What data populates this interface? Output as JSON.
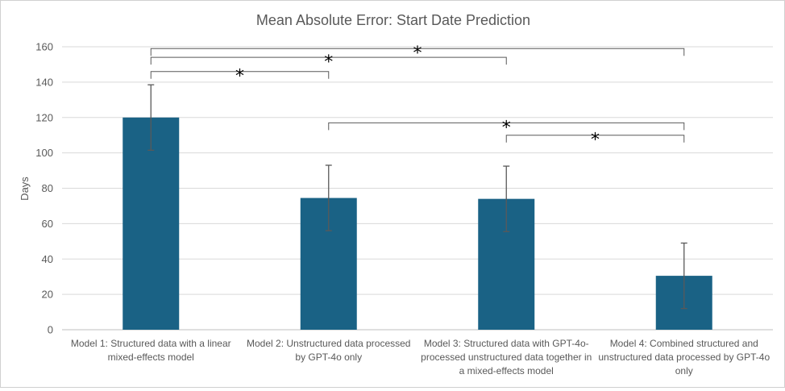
{
  "chart_data": {
    "type": "bar",
    "title": "Mean Absolute Error: Start Date Prediction",
    "xlabel": "",
    "ylabel": "Days",
    "ylim": [
      0,
      160
    ],
    "yticks": [
      0,
      20,
      40,
      60,
      80,
      100,
      120,
      140,
      160
    ],
    "grid": true,
    "bar_color": "#1a6285",
    "error_color": "#595959",
    "categories": [
      [
        "Model 1: Structured data with a linear",
        "mixed-effects model"
      ],
      [
        "Model 2: Unstructured data processed",
        "by GPT-4o only"
      ],
      [
        "Model 3: Structured data with GPT-4o-",
        "processed unstructured data together in",
        "a mixed-effects model"
      ],
      [
        "Model 4: Combined structured and",
        "unstructured data processed by GPT-4o",
        "only"
      ]
    ],
    "values": [
      120,
      74.5,
      74,
      30.5
    ],
    "error": [
      18.5,
      18.5,
      18.5,
      18.5
    ],
    "significance": [
      {
        "from": 0,
        "to": 3,
        "y": 159,
        "label": "*"
      },
      {
        "from": 0,
        "to": 2,
        "y": 154,
        "label": "*"
      },
      {
        "from": 0,
        "to": 1,
        "y": 146,
        "label": "*"
      },
      {
        "from": 1,
        "to": 3,
        "y": 117,
        "label": "*"
      },
      {
        "from": 2,
        "to": 3,
        "y": 110,
        "label": "*"
      }
    ]
  }
}
